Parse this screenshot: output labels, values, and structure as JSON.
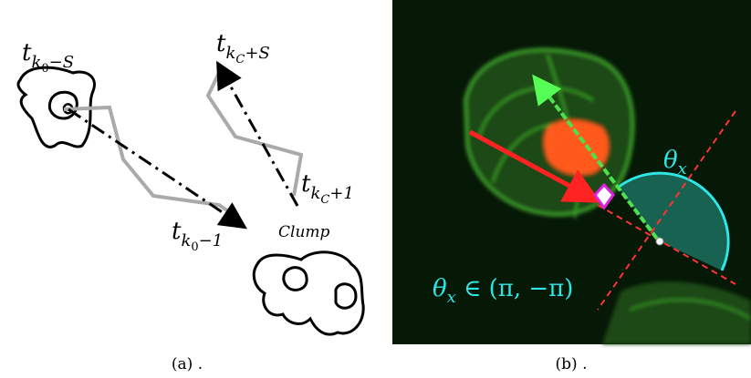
{
  "panel_a": {
    "labels": [
      {
        "base": "t",
        "sub": "k",
        "subsub": "0",
        "tail": "−S"
      },
      {
        "base": "t",
        "sub": "k",
        "subsub": "C",
        "tail": "+S"
      },
      {
        "base": "t",
        "sub": "k",
        "subsub": "C",
        "tail": "+1"
      },
      {
        "base": "t",
        "sub": "k",
        "subsub": "0",
        "tail": "−1"
      }
    ],
    "clump": "Clump",
    "caption": "(a) ."
  },
  "panel_b": {
    "angle_label": {
      "base": "θ",
      "sub": "x"
    },
    "range_label": {
      "base": "θ",
      "sub": "x",
      "tail": " ∈ (π, −π)"
    },
    "caption": "(b) ."
  }
}
